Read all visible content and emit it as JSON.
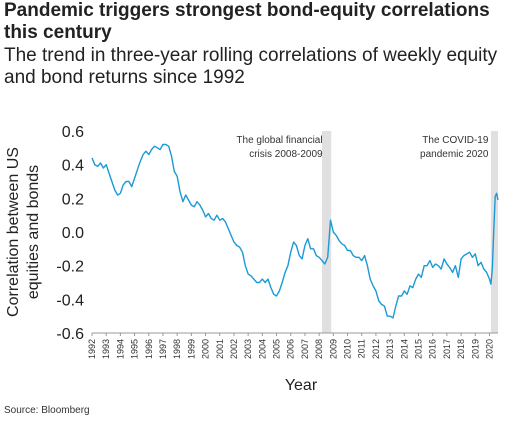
{
  "title": "Pandemic triggers strongest bond-equity correlations this century",
  "subtitle": "The trend in three-year rolling correlations of weekly equity and bond returns since 1992",
  "source": "Source: Bloomberg",
  "colors": {
    "line": "#1a9ad6",
    "shade": "#e0e0e0"
  },
  "chart_data": {
    "type": "line",
    "title": "Pandemic triggers strongest bond-equity correlations this century",
    "subtitle": "The trend in three-year rolling correlations of weekly equity and bond returns since 1992",
    "xlabel": "Year",
    "ylabel_line1": "Correlation between US",
    "ylabel_line2": "equities and bonds",
    "xlim": [
      1992,
      2020.6
    ],
    "ylim": [
      -0.6,
      0.6
    ],
    "yticks": [
      -0.6,
      -0.4,
      -0.2,
      0.0,
      0.2,
      0.4,
      0.6
    ],
    "ytick_labels": [
      "-0.6",
      "-0.4",
      "-0.2",
      "0.0",
      "0.2",
      "0.4",
      "0.6"
    ],
    "xticks": [
      1992,
      1993,
      1994,
      1995,
      1996,
      1997,
      1998,
      1999,
      2000,
      2001,
      2002,
      2003,
      2004,
      2005,
      2006,
      2007,
      2008,
      2009,
      2010,
      2011,
      2012,
      2013,
      2014,
      2015,
      2016,
      2017,
      2018,
      2019,
      2020
    ],
    "xtick_labels": [
      "1992",
      "1993",
      "1994",
      "1995",
      "1996",
      "1997",
      "1998",
      "1999",
      "2000",
      "2001",
      "2002",
      "2003",
      "2004",
      "2005",
      "2006",
      "2007",
      "2008",
      "2009",
      "2010",
      "2011",
      "2012",
      "2013",
      "2014",
      "2015",
      "2016",
      "2017",
      "2018",
      "2019",
      "2020"
    ],
    "grid": false,
    "annotations": [
      {
        "label_line1": "The global financial",
        "label_line2": "crisis 2008-2009",
        "x_start": 2008.2,
        "x_end": 2008.85
      },
      {
        "label_line1": "The COVID-19",
        "label_line2": "pandemic 2020",
        "x_start": 2020.1,
        "x_end": 2020.6
      }
    ],
    "series": [
      {
        "x": [
          1992.0,
          1992.2,
          1992.4,
          1992.6,
          1992.8,
          1993.0,
          1993.2,
          1993.4,
          1993.6,
          1993.8,
          1994.0,
          1994.2,
          1994.4,
          1994.6,
          1994.8,
          1995.0,
          1995.2,
          1995.4,
          1995.6,
          1995.8,
          1996.0,
          1996.2,
          1996.4,
          1996.6,
          1996.8,
          1997.0,
          1997.2,
          1997.4,
          1997.6,
          1997.8,
          1998.0,
          1998.2,
          1998.4,
          1998.6,
          1998.8,
          1999.0,
          1999.2,
          1999.4,
          1999.6,
          1999.8,
          2000.0,
          2000.2,
          2000.4,
          2000.6,
          2000.8,
          2001.0,
          2001.2,
          2001.4,
          2001.6,
          2001.8,
          2002.0,
          2002.2,
          2002.4,
          2002.6,
          2002.8,
          2003.0,
          2003.2,
          2003.4,
          2003.6,
          2003.8,
          2004.0,
          2004.2,
          2004.4,
          2004.6,
          2004.8,
          2005.0,
          2005.2,
          2005.4,
          2005.6,
          2005.8,
          2006.0,
          2006.2,
          2006.4,
          2006.6,
          2006.8,
          2007.0,
          2007.2,
          2007.4,
          2007.6,
          2007.8,
          2008.0,
          2008.2,
          2008.4,
          2008.6,
          2008.8,
          2009.0,
          2009.2,
          2009.4,
          2009.6,
          2009.8,
          2010.0,
          2010.2,
          2010.4,
          2010.6,
          2010.8,
          2011.0,
          2011.2,
          2011.4,
          2011.6,
          2011.8,
          2012.0,
          2012.2,
          2012.4,
          2012.6,
          2012.8,
          2013.0,
          2013.2,
          2013.4,
          2013.6,
          2013.8,
          2014.0,
          2014.2,
          2014.4,
          2014.6,
          2014.8,
          2015.0,
          2015.2,
          2015.4,
          2015.6,
          2015.8,
          2016.0,
          2016.2,
          2016.4,
          2016.6,
          2016.8,
          2017.0,
          2017.2,
          2017.4,
          2017.6,
          2017.8,
          2018.0,
          2018.2,
          2018.4,
          2018.6,
          2018.8,
          2019.0,
          2019.2,
          2019.4,
          2019.6,
          2019.8,
          2020.0,
          2020.1,
          2020.2,
          2020.3,
          2020.4,
          2020.5,
          2020.6
        ],
        "y": [
          0.44,
          0.4,
          0.39,
          0.41,
          0.38,
          0.4,
          0.35,
          0.3,
          0.25,
          0.22,
          0.23,
          0.28,
          0.3,
          0.3,
          0.27,
          0.32,
          0.37,
          0.42,
          0.46,
          0.48,
          0.46,
          0.49,
          0.51,
          0.5,
          0.49,
          0.52,
          0.52,
          0.51,
          0.45,
          0.36,
          0.33,
          0.24,
          0.18,
          0.22,
          0.19,
          0.16,
          0.15,
          0.18,
          0.16,
          0.13,
          0.09,
          0.11,
          0.08,
          0.07,
          0.1,
          0.07,
          0.08,
          0.06,
          0.02,
          -0.02,
          -0.06,
          -0.08,
          -0.09,
          -0.12,
          -0.2,
          -0.25,
          -0.26,
          -0.28,
          -0.3,
          -0.3,
          -0.28,
          -0.3,
          -0.28,
          -0.33,
          -0.37,
          -0.38,
          -0.35,
          -0.3,
          -0.24,
          -0.2,
          -0.12,
          -0.06,
          -0.08,
          -0.14,
          -0.16,
          -0.08,
          -0.04,
          -0.1,
          -0.1,
          -0.14,
          -0.15,
          -0.17,
          -0.19,
          -0.15,
          0.07,
          0.0,
          -0.02,
          -0.05,
          -0.07,
          -0.08,
          -0.11,
          -0.11,
          -0.14,
          -0.15,
          -0.15,
          -0.17,
          -0.14,
          -0.2,
          -0.28,
          -0.32,
          -0.35,
          -0.41,
          -0.43,
          -0.44,
          -0.5,
          -0.5,
          -0.51,
          -0.44,
          -0.38,
          -0.38,
          -0.35,
          -0.37,
          -0.32,
          -0.33,
          -0.28,
          -0.25,
          -0.27,
          -0.2,
          -0.2,
          -0.17,
          -0.21,
          -0.19,
          -0.2,
          -0.22,
          -0.16,
          -0.19,
          -0.21,
          -0.24,
          -0.2,
          -0.27,
          -0.16,
          -0.14,
          -0.13,
          -0.12,
          -0.15,
          -0.13,
          -0.2,
          -0.18,
          -0.22,
          -0.24,
          -0.28,
          -0.31,
          -0.22,
          0.0,
          0.21,
          0.23,
          0.19
        ]
      }
    ]
  }
}
